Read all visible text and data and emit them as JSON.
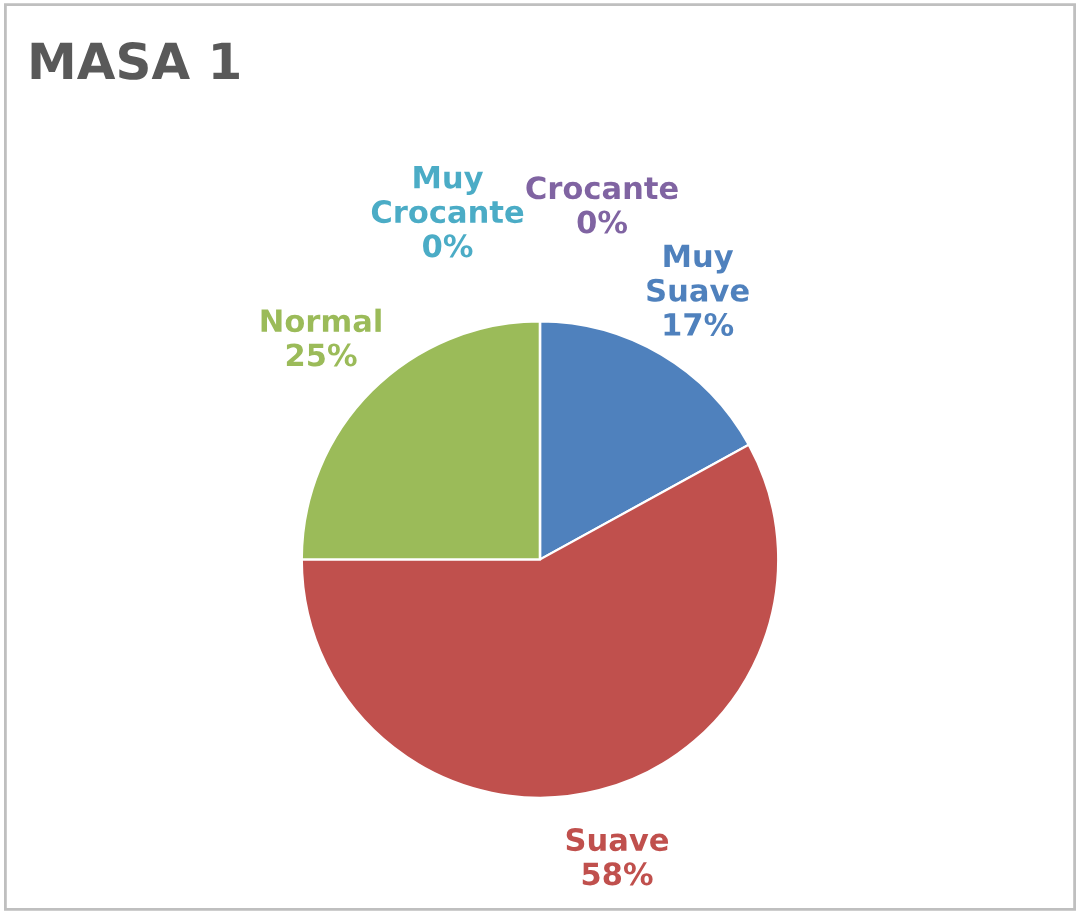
{
  "chart_data": {
    "type": "pie",
    "title": "MASA 1",
    "categories": [
      "Muy Suave",
      "Suave",
      "Normal",
      "Muy Crocante",
      "Crocante"
    ],
    "values": [
      17,
      58,
      25,
      0,
      0
    ],
    "value_labels": [
      "17%",
      "58%",
      "25%",
      "0%",
      "0%"
    ],
    "colors": [
      "#4f81bd",
      "#c0504d",
      "#9bbb59",
      "#4bacc6",
      "#8064a2"
    ],
    "legend": false
  }
}
